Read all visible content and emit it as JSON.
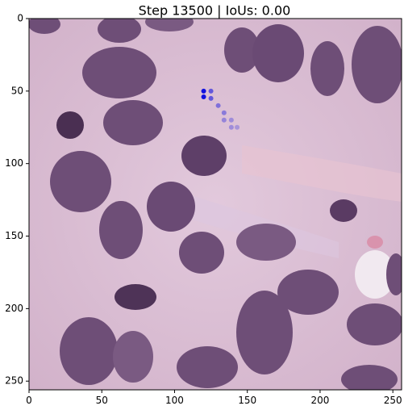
{
  "chart_data": {
    "type": "scatter",
    "title": "Step 13500 | IoUs: 0.00",
    "background": "H&E-stained histology tissue image (pink stroma, purple nuclei)",
    "xlim": [
      0,
      256
    ],
    "ylim": [
      256,
      0
    ],
    "xticks": [
      0,
      50,
      100,
      150,
      200,
      250
    ],
    "yticks": [
      0,
      50,
      100,
      150,
      200,
      250
    ],
    "xlabel": "",
    "ylabel": "",
    "grid": false,
    "series": [
      {
        "name": "point-trajectory",
        "points": [
          {
            "x": 120,
            "y": 50,
            "alpha": 1.0
          },
          {
            "x": 120,
            "y": 54,
            "alpha": 1.0
          },
          {
            "x": 125,
            "y": 50,
            "alpha": 0.6
          },
          {
            "x": 125,
            "y": 55,
            "alpha": 0.6
          },
          {
            "x": 130,
            "y": 60,
            "alpha": 0.45
          },
          {
            "x": 134,
            "y": 65,
            "alpha": 0.4
          },
          {
            "x": 134,
            "y": 70,
            "alpha": 0.35
          },
          {
            "x": 139,
            "y": 70,
            "alpha": 0.3
          },
          {
            "x": 139,
            "y": 75,
            "alpha": 0.3
          },
          {
            "x": 143,
            "y": 75,
            "alpha": 0.25
          }
        ]
      }
    ]
  },
  "colors": {
    "marker": "#1010e0",
    "tissue_background": "#d9bcd2",
    "nucleus": "#6e4e77",
    "nucleus_dark": "#4a2f52"
  }
}
